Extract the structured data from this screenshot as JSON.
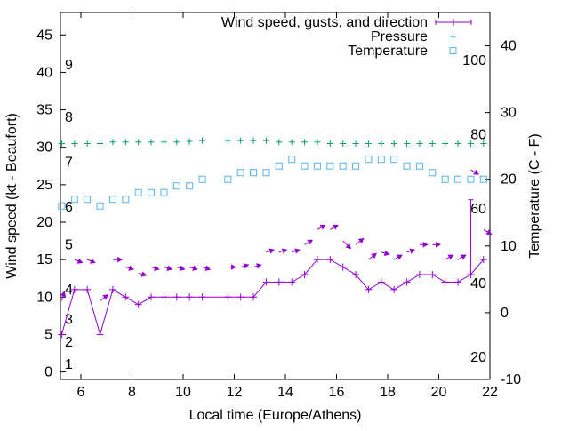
{
  "chart_data": {
    "type": "line",
    "xlabel": "Local time (Europe/Athens)",
    "ylabel_left": "Wind speed (kt - Beaufort)",
    "ylabel_right": "Temperature (C - F)",
    "xlim": [
      5.2,
      22
    ],
    "ylim_left": [
      -1,
      48
    ],
    "ylim_right": [
      -10,
      45
    ],
    "x_ticks": [
      6,
      8,
      10,
      12,
      14,
      16,
      18,
      20,
      22
    ],
    "y_left_ticks": [
      0,
      5,
      10,
      15,
      20,
      25,
      30,
      35,
      40,
      45
    ],
    "y_right_ticks": [
      -10,
      0,
      10,
      20,
      30,
      40
    ],
    "beaufort_labels": [
      {
        "label": "1",
        "value": 1
      },
      {
        "label": "2",
        "value": 4
      },
      {
        "label": "3",
        "value": 7
      },
      {
        "label": "4",
        "value": 11
      },
      {
        "label": "5",
        "value": 17
      },
      {
        "label": "6",
        "value": 22
      },
      {
        "label": "7",
        "value": 28
      },
      {
        "label": "8",
        "value": 34
      },
      {
        "label": "9",
        "value": 41
      }
    ],
    "fahrenheit_labels": [
      {
        "label": "20",
        "value": -6.7
      },
      {
        "label": "40",
        "value": 4.4
      },
      {
        "label": "60",
        "value": 15.6
      },
      {
        "label": "80",
        "value": 26.7
      },
      {
        "label": "100",
        "value": 37.8
      }
    ],
    "grid": false,
    "legend_position": "top-right",
    "series": [
      {
        "name": "Wind speed, gusts, and direction",
        "color": "#9400d3",
        "axis": "left",
        "x": [
          5.25,
          5.75,
          6.25,
          6.75,
          7.25,
          7.75,
          8.25,
          8.75,
          9.25,
          9.75,
          10.25,
          10.75,
          11.75,
          12.25,
          12.75,
          13.25,
          13.75,
          14.25,
          14.75,
          15.25,
          15.75,
          16.25,
          16.75,
          17.25,
          17.75,
          18.25,
          18.75,
          19.25,
          19.75,
          20.25,
          20.75,
          21.25,
          21.75
        ],
        "values": [
          5,
          11,
          11,
          5,
          11,
          10,
          9,
          10,
          10,
          10,
          10,
          10,
          10,
          10,
          10,
          12,
          12,
          12,
          13,
          15,
          15,
          14,
          13,
          11,
          12,
          11,
          12,
          13,
          13,
          12,
          12,
          13,
          15
        ],
        "gusts": [
          {
            "x": 21.25,
            "low": 13,
            "high": 23
          }
        ]
      },
      {
        "name": "Wind direction",
        "color": "#9400d3",
        "axis": "left",
        "points": [
          {
            "x": 5.25,
            "y": 9.5,
            "dx": 0.1,
            "dy": 1.2
          },
          {
            "x": 5.75,
            "y": 15.0,
            "dx": 0.3,
            "dy": -0.4
          },
          {
            "x": 6.25,
            "y": 15.0,
            "dx": 0.3,
            "dy": -0.4
          },
          {
            "x": 6.75,
            "y": 9.5,
            "dx": 0.3,
            "dy": 0.8
          },
          {
            "x": 7.25,
            "y": 15.0,
            "dx": 0.35,
            "dy": 0.0
          },
          {
            "x": 7.75,
            "y": 14.0,
            "dx": 0.3,
            "dy": -0.3
          },
          {
            "x": 8.25,
            "y": 13.2,
            "dx": 0.3,
            "dy": -0.3
          },
          {
            "x": 8.75,
            "y": 14.0,
            "dx": 0.3,
            "dy": -0.3
          },
          {
            "x": 9.25,
            "y": 14.0,
            "dx": 0.3,
            "dy": -0.3
          },
          {
            "x": 9.75,
            "y": 14.0,
            "dx": 0.3,
            "dy": -0.3
          },
          {
            "x": 10.25,
            "y": 14.0,
            "dx": 0.3,
            "dy": -0.3
          },
          {
            "x": 10.75,
            "y": 14.0,
            "dx": 0.3,
            "dy": -0.3
          },
          {
            "x": 11.75,
            "y": 14.0,
            "dx": 0.3,
            "dy": 0.0
          },
          {
            "x": 12.25,
            "y": 14.0,
            "dx": 0.3,
            "dy": 0.3
          },
          {
            "x": 12.75,
            "y": 14.0,
            "dx": 0.3,
            "dy": 0.3
          },
          {
            "x": 13.25,
            "y": 16.0,
            "dx": 0.3,
            "dy": 0.3
          },
          {
            "x": 13.75,
            "y": 16.0,
            "dx": 0.3,
            "dy": 0.3
          },
          {
            "x": 14.25,
            "y": 16.0,
            "dx": 0.3,
            "dy": 0.3
          },
          {
            "x": 14.75,
            "y": 17.0,
            "dx": 0.3,
            "dy": 0.6
          },
          {
            "x": 15.25,
            "y": 19.0,
            "dx": 0.3,
            "dy": 0.6
          },
          {
            "x": 15.75,
            "y": 19.0,
            "dx": 0.3,
            "dy": 0.6
          },
          {
            "x": 16.25,
            "y": 17.5,
            "dx": 0.3,
            "dy": -1.0
          },
          {
            "x": 16.75,
            "y": 17.0,
            "dx": 0.3,
            "dy": 0.8
          },
          {
            "x": 17.25,
            "y": 15.0,
            "dx": 0.3,
            "dy": 0.8
          },
          {
            "x": 17.75,
            "y": 16.0,
            "dx": 0.3,
            "dy": -0.3
          },
          {
            "x": 18.25,
            "y": 15.0,
            "dx": 0.3,
            "dy": 0.6
          },
          {
            "x": 18.75,
            "y": 16.0,
            "dx": 0.3,
            "dy": 0.3
          },
          {
            "x": 19.25,
            "y": 17.0,
            "dx": 0.3,
            "dy": 0.0
          },
          {
            "x": 19.75,
            "y": 17.0,
            "dx": 0.3,
            "dy": 0.0
          },
          {
            "x": 20.25,
            "y": 15.0,
            "dx": 0.3,
            "dy": 0.6
          },
          {
            "x": 20.75,
            "y": 15.0,
            "dx": 0.3,
            "dy": 0.6
          },
          {
            "x": 21.25,
            "y": 27.0,
            "dx": 0.3,
            "dy": -0.6
          },
          {
            "x": 21.75,
            "y": 19.0,
            "dx": 0.3,
            "dy": -0.6
          }
        ]
      },
      {
        "name": "Pressure",
        "color": "#009e73",
        "axis": "left",
        "x": [
          5.25,
          5.75,
          6.25,
          6.75,
          7.25,
          7.75,
          8.25,
          8.75,
          9.25,
          9.75,
          10.25,
          10.75,
          11.75,
          12.25,
          12.75,
          13.25,
          13.75,
          14.25,
          14.75,
          15.25,
          15.75,
          16.25,
          16.75,
          17.25,
          17.75,
          18.25,
          18.75,
          19.25,
          19.75,
          20.25,
          20.75,
          21.25,
          21.75
        ],
        "values": [
          30.5,
          30.5,
          30.5,
          30.5,
          30.7,
          30.7,
          30.7,
          30.7,
          30.7,
          30.7,
          30.8,
          30.9,
          30.9,
          30.9,
          30.9,
          30.9,
          30.7,
          30.7,
          30.7,
          30.7,
          30.5,
          30.5,
          30.5,
          30.5,
          30.5,
          30.5,
          30.5,
          30.5,
          30.5,
          30.5,
          30.5,
          30.5,
          30.5
        ]
      },
      {
        "name": "Temperature",
        "color": "#56b4e9",
        "axis": "right",
        "x": [
          5.25,
          5.75,
          6.25,
          6.75,
          7.25,
          7.75,
          8.25,
          8.75,
          9.25,
          9.75,
          10.25,
          10.75,
          11.75,
          12.25,
          12.75,
          13.25,
          13.75,
          14.25,
          14.75,
          15.25,
          15.75,
          16.25,
          16.75,
          17.25,
          17.75,
          18.25,
          18.75,
          19.25,
          19.75,
          20.25,
          20.75,
          21.25,
          21.75
        ],
        "values": [
          16,
          17,
          17,
          16,
          17,
          17,
          18,
          18,
          18,
          19,
          19,
          20,
          20,
          21,
          21,
          21,
          22,
          23,
          22,
          22,
          22,
          22,
          22,
          23,
          23,
          23,
          22,
          22,
          21,
          20,
          20,
          20,
          20
        ]
      }
    ]
  }
}
